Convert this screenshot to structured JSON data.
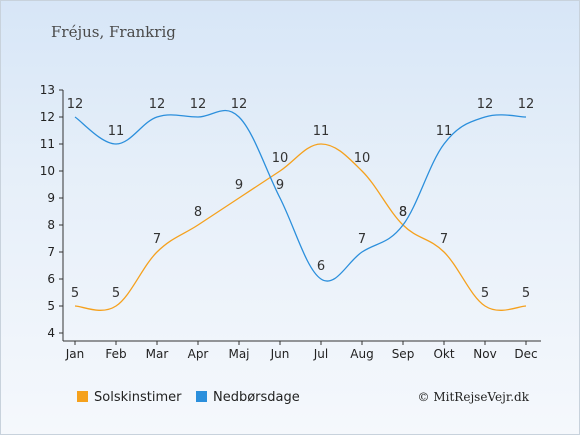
{
  "title": "Fréjus, Frankrig",
  "credit": "© MitRejseVejr.dk",
  "chart_data": {
    "type": "line",
    "categories": [
      "Jan",
      "Feb",
      "Mar",
      "Apr",
      "Maj",
      "Jun",
      "Jul",
      "Aug",
      "Sep",
      "Okt",
      "Nov",
      "Dec"
    ],
    "ylim": [
      4,
      13
    ],
    "yticks": [
      4,
      5,
      6,
      7,
      8,
      9,
      10,
      11,
      12,
      13
    ],
    "grid": false,
    "legend_position": "bottom",
    "series": [
      {
        "name": "Solskinstimer",
        "color": "#f5a11d",
        "values": [
          5,
          5,
          7,
          8,
          9,
          10,
          11,
          10,
          8,
          7,
          5,
          5
        ]
      },
      {
        "name": "Nedbørsdage",
        "color": "#2b8fdc",
        "values": [
          12,
          11,
          12,
          12,
          12,
          9,
          6,
          7,
          8,
          11,
          12,
          12
        ]
      }
    ]
  }
}
